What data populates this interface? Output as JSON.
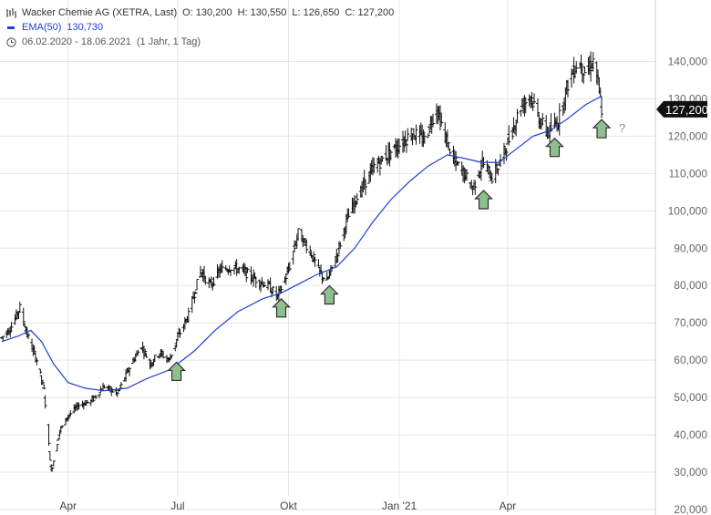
{
  "header": {
    "title": "Wacker Chemie AG (XETRA, Last)",
    "open": "O: 130,200",
    "high": "H: 130,550",
    "low": "L: 126,650",
    "close": "C: 127,200",
    "ema_label": "EMA(50)",
    "ema_value": "130,730",
    "date_range": "06.02.2020 - 18.06.2021",
    "interval": "(1 Jahr, 1 Tag)",
    "icons": [
      "candle-chart-icon",
      "clock-icon"
    ]
  },
  "price_badge": "127,200",
  "annotation_text": "?",
  "colors": {
    "ohlc": "#111111",
    "ema": "#1f3fd6",
    "grid": "#e6e6e6",
    "arrow_fill": "#8fbf8f",
    "arrow_stroke": "#2f2f2f",
    "badge_bg": "#111111",
    "badge_text": "#ffffff"
  },
  "chart_data": {
    "type": "ohlc",
    "title": "Wacker Chemie AG (XETRA, Last)",
    "y_axis": {
      "position": "right",
      "range": [
        20000,
        150000
      ],
      "ticks": [
        "20,000",
        "30,000",
        "40,000",
        "50,000",
        "60,000",
        "70,000",
        "80,000",
        "90,000",
        "100,000",
        "110,000",
        "120,000",
        "130,000",
        "140,000"
      ]
    },
    "x_axis": {
      "range": [
        "2020-02-06",
        "2021-06-18"
      ],
      "ticks": [
        {
          "date": "2020-04-01",
          "label": "Apr"
        },
        {
          "date": "2020-07-01",
          "label": "Jul"
        },
        {
          "date": "2020-10-01",
          "label": "Okt"
        },
        {
          "date": "2021-01-01",
          "label": "Jan '21"
        },
        {
          "date": "2021-04-01",
          "label": "Apr"
        }
      ]
    },
    "grid": true,
    "price_path": [
      [
        "2020-02-06",
        66000
      ],
      [
        "2020-02-14",
        69000
      ],
      [
        "2020-02-21",
        74000
      ],
      [
        "2020-02-28",
        66000
      ],
      [
        "2020-03-06",
        60000
      ],
      [
        "2020-03-12",
        52000
      ],
      [
        "2020-03-18",
        30000
      ],
      [
        "2020-03-25",
        41000
      ],
      [
        "2020-04-01",
        45000
      ],
      [
        "2020-04-10",
        48000
      ],
      [
        "2020-04-20",
        49000
      ],
      [
        "2020-05-01",
        53000
      ],
      [
        "2020-05-12",
        51000
      ],
      [
        "2020-05-22",
        58000
      ],
      [
        "2020-06-01",
        64000
      ],
      [
        "2020-06-08",
        59000
      ],
      [
        "2020-06-16",
        62000
      ],
      [
        "2020-06-24",
        60000
      ],
      [
        "2020-07-01",
        66000
      ],
      [
        "2020-07-10",
        72000
      ],
      [
        "2020-07-20",
        84000
      ],
      [
        "2020-07-28",
        80000
      ],
      [
        "2020-08-05",
        84000
      ],
      [
        "2020-08-14",
        85000
      ],
      [
        "2020-08-24",
        84000
      ],
      [
        "2020-09-02",
        82000
      ],
      [
        "2020-09-14",
        80000
      ],
      [
        "2020-09-22",
        77000
      ],
      [
        "2020-10-01",
        84000
      ],
      [
        "2020-10-09",
        94000
      ],
      [
        "2020-10-18",
        90000
      ],
      [
        "2020-10-26",
        84000
      ],
      [
        "2020-11-02",
        81000
      ],
      [
        "2020-11-10",
        88000
      ],
      [
        "2020-11-18",
        97000
      ],
      [
        "2020-11-26",
        103000
      ],
      [
        "2020-12-04",
        108000
      ],
      [
        "2020-12-12",
        112000
      ],
      [
        "2020-12-22",
        115000
      ],
      [
        "2021-01-02",
        118000
      ],
      [
        "2021-01-12",
        121000
      ],
      [
        "2021-01-22",
        119000
      ],
      [
        "2021-02-01",
        128000
      ],
      [
        "2021-02-08",
        120000
      ],
      [
        "2021-02-16",
        113000
      ],
      [
        "2021-02-24",
        110000
      ],
      [
        "2021-03-03",
        106000
      ],
      [
        "2021-03-11",
        113000
      ],
      [
        "2021-03-19",
        109000
      ],
      [
        "2021-03-26",
        113000
      ],
      [
        "2021-04-03",
        120000
      ],
      [
        "2021-04-12",
        128000
      ],
      [
        "2021-04-20",
        131000
      ],
      [
        "2021-04-28",
        124000
      ],
      [
        "2021-05-05",
        121000
      ],
      [
        "2021-05-13",
        124000
      ],
      [
        "2021-05-21",
        134000
      ],
      [
        "2021-05-29",
        140000
      ],
      [
        "2021-06-06",
        137000
      ],
      [
        "2021-06-12",
        141000
      ],
      [
        "2021-06-18",
        127200
      ]
    ],
    "series": [
      {
        "name": "EMA(50)",
        "points": [
          [
            "2020-02-06",
            65000
          ],
          [
            "2020-02-20",
            66500
          ],
          [
            "2020-03-01",
            68000
          ],
          [
            "2020-03-10",
            65000
          ],
          [
            "2020-03-20",
            59000
          ],
          [
            "2020-04-01",
            54000
          ],
          [
            "2020-04-15",
            52500
          ],
          [
            "2020-05-01",
            51800
          ],
          [
            "2020-05-20",
            52500
          ],
          [
            "2020-06-05",
            55000
          ],
          [
            "2020-06-25",
            57500
          ],
          [
            "2020-07-15",
            62500
          ],
          [
            "2020-08-01",
            68000
          ],
          [
            "2020-08-20",
            73000
          ],
          [
            "2020-09-10",
            76500
          ],
          [
            "2020-09-25",
            78000
          ],
          [
            "2020-10-10",
            80500
          ],
          [
            "2020-10-25",
            83000
          ],
          [
            "2020-11-10",
            85000
          ],
          [
            "2020-11-25",
            90000
          ],
          [
            "2020-12-10",
            97000
          ],
          [
            "2020-12-25",
            103000
          ],
          [
            "2021-01-10",
            108000
          ],
          [
            "2021-01-25",
            112000
          ],
          [
            "2021-02-10",
            115000
          ],
          [
            "2021-02-25",
            114000
          ],
          [
            "2021-03-10",
            113000
          ],
          [
            "2021-03-25",
            113000
          ],
          [
            "2021-04-08",
            116500
          ],
          [
            "2021-04-22",
            120000
          ],
          [
            "2021-05-06",
            121500
          ],
          [
            "2021-05-20",
            124500
          ],
          [
            "2021-06-05",
            128500
          ],
          [
            "2021-06-18",
            130730
          ]
        ]
      }
    ],
    "annotations": [
      {
        "type": "up-arrow",
        "date": "2020-06-30",
        "value": 57000
      },
      {
        "type": "up-arrow",
        "date": "2020-09-25",
        "value": 74000
      },
      {
        "type": "up-arrow",
        "date": "2020-11-04",
        "value": 77500
      },
      {
        "type": "up-arrow",
        "date": "2021-03-12",
        "value": 103000
      },
      {
        "type": "up-arrow",
        "date": "2021-05-10",
        "value": 117000
      },
      {
        "type": "up-arrow",
        "date": "2021-06-18",
        "value": 122000,
        "label": "?"
      }
    ]
  }
}
